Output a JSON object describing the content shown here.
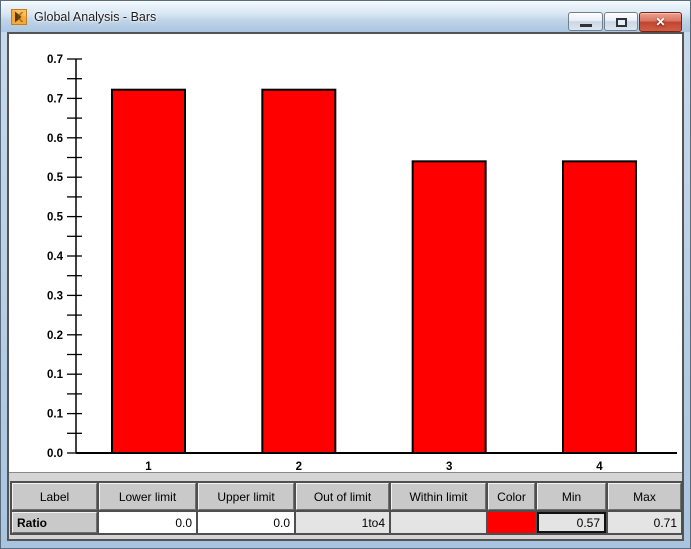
{
  "window": {
    "title": "Global Analysis - Bars",
    "icons": {
      "app": "K-logo",
      "minimize": "minimize-bar",
      "maximize": "maximize-square",
      "close_glyph": "✕"
    }
  },
  "chart_data": {
    "type": "bar",
    "title": "",
    "categories": [
      "1",
      "2",
      "3",
      "4"
    ],
    "values": [
      0.71,
      0.71,
      0.57,
      0.57
    ],
    "bar_color": "#FF0000",
    "bar_border_color": "#000000",
    "xlabel": "",
    "ylabel": "",
    "ylim": [
      0,
      0.77
    ],
    "ytick_labels_top_to_bottom": [
      "0.7",
      "0.7",
      "0.6",
      "0.5",
      "0.5",
      "0.4",
      "0.3",
      "0.2",
      "0.1",
      "0.1",
      "0.0"
    ],
    "minor_ticks_between_labels": true,
    "grid": false,
    "legend": "none"
  },
  "table": {
    "headers": [
      "Label",
      "Lower limit",
      "Upper limit",
      "Out of limit",
      "Within limit",
      "Color",
      "Min",
      "Max"
    ],
    "row": {
      "label": "Ratio",
      "lower_limit": "0.0",
      "upper_limit": "0.0",
      "out_of_limit": "1to4",
      "within_limit": "",
      "color_hex": "#FF0000",
      "min": "0.57",
      "max": "0.71"
    }
  }
}
